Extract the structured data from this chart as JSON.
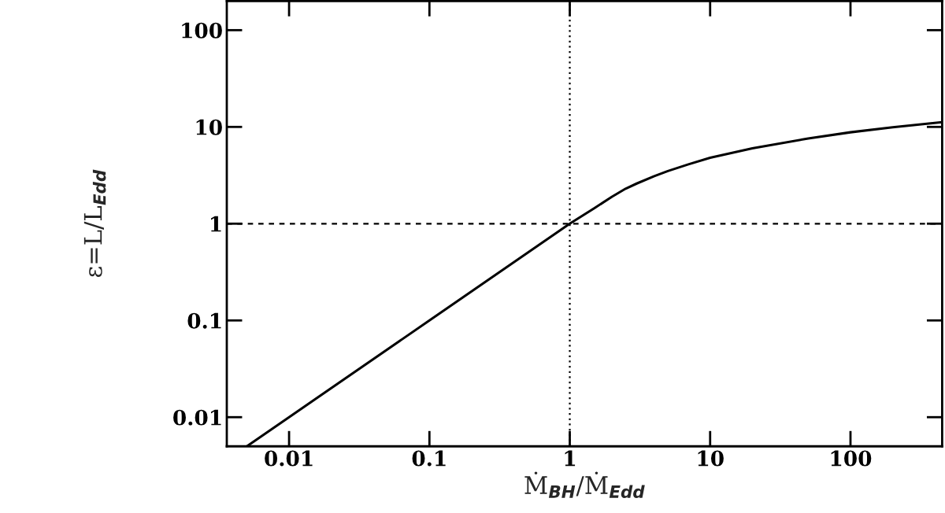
{
  "chart_data": {
    "type": "line",
    "xlabel": "Ṁ$_{BH}$/Ṁ$_{Edd}$",
    "ylabel": "ε=L/L$_{Edd}$",
    "log": "xy",
    "xlim": [
      0.0036,
      450
    ],
    "ylim": [
      0.005,
      200
    ],
    "xticks": [
      0.01,
      0.1,
      1,
      10,
      100
    ],
    "yticks": [
      0.01,
      0.1,
      1,
      10,
      100
    ],
    "tick_labels": "xy",
    "grid": false,
    "legend": false,
    "marker": "none",
    "line_style": "solid",
    "series": [
      {
        "color": "#000000",
        "x": [
          0.005,
          0.01,
          0.1,
          1,
          1.5,
          2,
          2.5,
          3,
          4,
          5,
          7,
          10,
          20,
          50,
          100,
          200,
          450
        ],
        "values": [
          0.005,
          0.01,
          0.1,
          1,
          1.45,
          1.9,
          2.3,
          2.6,
          3.1,
          3.5,
          4.1,
          4.8,
          6.0,
          7.6,
          8.8,
          9.9,
          11.2
        ]
      }
    ],
    "ref_lines": [
      {
        "axis": "x",
        "value": 1,
        "line_style": "dotted",
        "color": "#000000"
      },
      {
        "axis": "y",
        "value": 1,
        "line_style": "dashed",
        "color": "#000000"
      }
    ]
  }
}
